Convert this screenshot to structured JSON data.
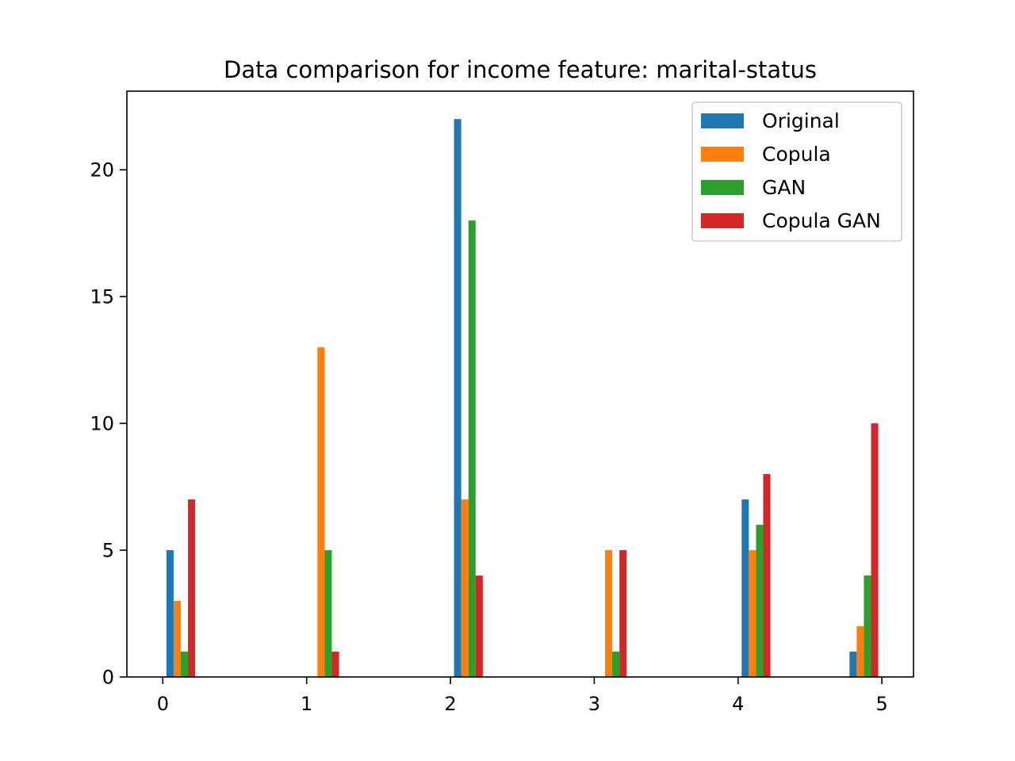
{
  "chart_data": {
    "type": "bar",
    "title": "Data comparison for income feature: marital-status",
    "xlabel": "",
    "ylabel": "",
    "xlim": [
      -0.25,
      5.22
    ],
    "ylim": [
      0,
      23.1
    ],
    "xticks": [
      0,
      1,
      2,
      3,
      4,
      5
    ],
    "yticks": [
      0,
      5,
      10,
      15,
      20
    ],
    "grid": false,
    "legend_position": "top-right",
    "series": [
      {
        "name": "Original",
        "color": "#1f77b4",
        "x": [
          0.05,
          2.05,
          4.05,
          4.8
        ],
        "values": [
          5,
          22,
          7,
          1
        ]
      },
      {
        "name": "Copula",
        "color": "#ff7f0e",
        "x": [
          0.1,
          1.1,
          2.1,
          3.1,
          4.1,
          4.85
        ],
        "values": [
          3,
          13,
          7,
          5,
          5,
          2
        ]
      },
      {
        "name": "GAN",
        "color": "#2ca02c",
        "x": [
          0.15,
          1.15,
          2.15,
          3.15,
          4.15,
          4.9
        ],
        "values": [
          1,
          5,
          18,
          1,
          6,
          4
        ]
      },
      {
        "name": "Copula GAN",
        "color": "#d62728",
        "x": [
          0.2,
          1.2,
          2.2,
          3.2,
          4.2,
          4.95
        ],
        "values": [
          7,
          1,
          4,
          5,
          8,
          10
        ]
      }
    ]
  }
}
